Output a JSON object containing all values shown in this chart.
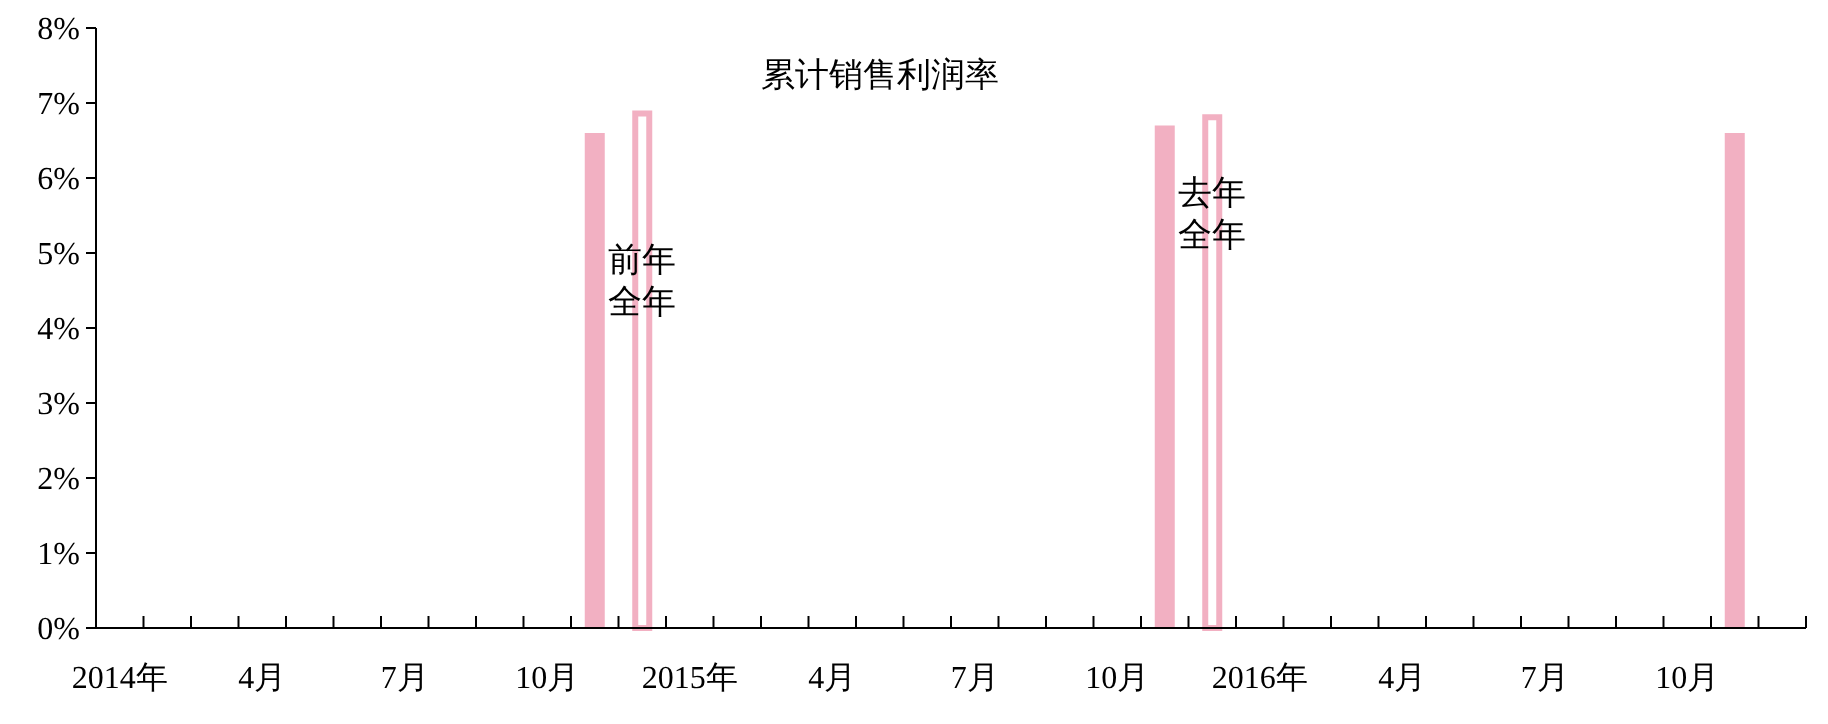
{
  "chart_data": {
    "type": "bar",
    "title": "累计销售利润率",
    "categories": [
      "2014年",
      null,
      null,
      "4月",
      null,
      null,
      "7月",
      null,
      null,
      "10月",
      null,
      null,
      "2015年",
      null,
      null,
      "4月",
      null,
      null,
      "7月",
      null,
      null,
      "10月",
      null,
      null,
      "2016年",
      null,
      null,
      "4月",
      null,
      null,
      "7月",
      null,
      null,
      "10月",
      null,
      null
    ],
    "series": [
      {
        "color": "#f2b0c2",
        "values": [
          null,
          null,
          null,
          null,
          null,
          null,
          null,
          null,
          null,
          null,
          6.6,
          null,
          null,
          null,
          null,
          null,
          null,
          null,
          null,
          null,
          null,
          null,
          6.7,
          null,
          null,
          null,
          null,
          null,
          null,
          null,
          null,
          null,
          null,
          null,
          6.6,
          null
        ]
      },
      {
        "color": "#f2b0c2",
        "values": [
          null,
          null,
          null,
          null,
          null,
          null,
          null,
          null,
          null,
          null,
          null,
          6.9,
          null,
          null,
          null,
          null,
          null,
          null,
          null,
          null,
          null,
          null,
          null,
          6.85,
          null,
          null,
          null,
          null,
          null,
          null,
          null,
          null,
          null,
          null,
          null,
          null
        ],
        "value_labels": [
          null,
          null,
          null,
          null,
          null,
          null,
          null,
          null,
          null,
          null,
          null,
          "前年全年",
          null,
          null,
          null,
          null,
          null,
          null,
          null,
          null,
          null,
          null,
          null,
          "去年全年",
          null,
          null,
          null,
          null,
          null,
          null,
          null,
          null,
          null,
          null,
          null,
          null
        ]
      }
    ],
    "ylim": [
      0,
      8
    ],
    "yticks": [
      {
        "value": 0,
        "label": "0%"
      },
      {
        "value": 1,
        "label": "1%"
      },
      {
        "value": 2,
        "label": "2%"
      },
      {
        "value": 3,
        "label": "3%"
      },
      {
        "value": 4,
        "label": "4%"
      },
      {
        "value": 5,
        "label": "5%"
      },
      {
        "value": 6,
        "label": "6%"
      },
      {
        "value": 7,
        "label": "7%"
      },
      {
        "value": 8,
        "label": "8%"
      }
    ],
    "grid": false
  }
}
